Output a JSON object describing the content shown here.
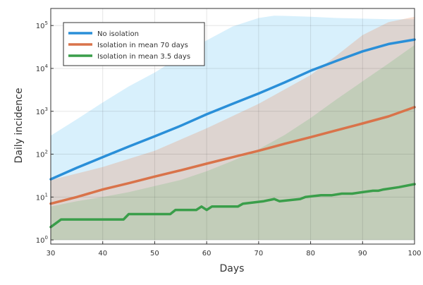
{
  "chart_data": {
    "type": "line",
    "title": "",
    "xlabel": "Days",
    "ylabel": "Daily incidence",
    "x_scale": "linear",
    "y_scale": "log10",
    "xlim": [
      30,
      100
    ],
    "ylim": [
      0.8,
      250000
    ],
    "grid": true,
    "legend_position": "top-left",
    "x_ticks": [
      30,
      40,
      50,
      60,
      70,
      80,
      90,
      100
    ],
    "x_tick_labels": [
      "30",
      "40",
      "50",
      "60",
      "70",
      "80",
      "90",
      "100"
    ],
    "y_ticks": [
      1,
      10,
      100,
      1000,
      10000,
      100000
    ],
    "y_tick_labels": [
      {
        "base": "10",
        "exp": "0"
      },
      {
        "base": "10",
        "exp": "1"
      },
      {
        "base": "10",
        "exp": "2"
      },
      {
        "base": "10",
        "exp": "3"
      },
      {
        "base": "10",
        "exp": "4"
      },
      {
        "base": "10",
        "exp": "5"
      }
    ],
    "series": [
      {
        "name": "No isolation",
        "color": "#2a8fd8",
        "band_color": "#8fd3f5",
        "x": [
          30,
          35,
          40,
          45,
          50,
          55,
          60,
          65,
          70,
          75,
          80,
          85,
          90,
          95,
          100
        ],
        "values": [
          26,
          48,
          85,
          150,
          260,
          460,
          850,
          1500,
          2600,
          4700,
          8800,
          15000,
          25000,
          37000,
          47000
        ],
        "band_x": [
          30,
          35,
          40,
          45,
          50,
          55,
          60,
          65,
          70,
          73,
          75,
          80,
          85,
          90,
          95,
          100
        ],
        "band_upper": [
          270,
          650,
          1600,
          3800,
          8000,
          19000,
          45000,
          95000,
          150000,
          170000,
          168000,
          160000,
          150000,
          145000,
          140000,
          140000
        ],
        "band_lower": [
          1,
          1,
          1,
          1,
          1,
          1,
          1,
          1,
          1,
          1,
          1,
          1,
          1,
          1,
          1,
          1
        ]
      },
      {
        "name": "Isolation in mean 70 days",
        "color": "#d9734a",
        "band_color": "#e8a07e",
        "x": [
          30,
          35,
          40,
          45,
          50,
          55,
          60,
          65,
          70,
          75,
          80,
          85,
          90,
          95,
          100
        ],
        "values": [
          7,
          10,
          15,
          21,
          30,
          42,
          60,
          85,
          120,
          175,
          250,
          360,
          520,
          760,
          1250
        ],
        "band_x": [
          30,
          40,
          50,
          60,
          70,
          80,
          85,
          90,
          95,
          100
        ],
        "band_upper": [
          25,
          50,
          120,
          400,
          1500,
          7000,
          20000,
          60000,
          120000,
          160000
        ],
        "band_lower": [
          1,
          1,
          1,
          1,
          1,
          1,
          1,
          1,
          1,
          1
        ]
      },
      {
        "name": "Isolation in mean 3.5 days",
        "color": "#3a9e4a",
        "band_color": "#8fbf8f",
        "x": [
          30,
          32,
          35,
          40,
          44,
          45,
          50,
          53,
          54,
          58,
          59,
          60,
          61,
          66,
          67,
          71,
          73,
          74,
          78,
          79,
          82,
          84,
          86,
          88,
          90,
          92,
          93,
          94,
          97,
          100
        ],
        "values": [
          2,
          3,
          3,
          3,
          3,
          4,
          4,
          4,
          5,
          5,
          6,
          5,
          6,
          6,
          7,
          8,
          9,
          8,
          9,
          10,
          11,
          11,
          12,
          12,
          13,
          14,
          14,
          15,
          17,
          20
        ],
        "band_x": [
          30,
          35,
          40,
          45,
          50,
          55,
          60,
          65,
          70,
          75,
          80,
          85,
          90,
          95,
          100
        ],
        "band_upper": [
          6,
          8,
          10,
          13,
          18,
          25,
          40,
          70,
          130,
          280,
          700,
          1900,
          5000,
          13000,
          35000
        ],
        "band_lower": [
          1,
          1,
          1,
          1,
          1,
          1,
          1,
          1,
          1,
          1,
          1,
          1,
          1,
          1,
          1
        ]
      }
    ]
  }
}
